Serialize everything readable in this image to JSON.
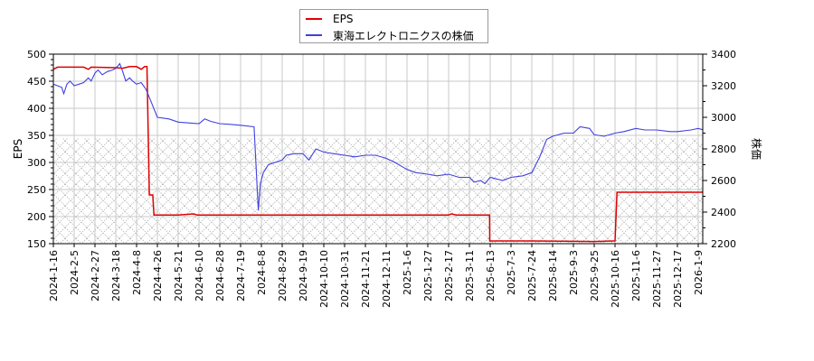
{
  "chart_data": {
    "type": "line",
    "title": "",
    "legend": {
      "position": "top-center",
      "entries": [
        {
          "label": "EPS",
          "color": "#e00000"
        },
        {
          "label": "東海エレクトロニクスの株価",
          "color": "#4040e0"
        }
      ]
    },
    "left_axis": {
      "label": "EPS",
      "ylim": [
        150,
        500
      ],
      "ticks": [
        150,
        200,
        250,
        300,
        350,
        400,
        450,
        500
      ]
    },
    "right_axis": {
      "label": "株価",
      "ylim": [
        2200,
        3400
      ],
      "ticks": [
        2200,
        2400,
        2600,
        2800,
        3000,
        3200,
        3400
      ]
    },
    "x_ticks": [
      "2024-1-16",
      "2024-2-5",
      "2024-2-27",
      "2024-3-18",
      "2024-4-8",
      "2024-4-26",
      "2024-5-21",
      "2024-6-10",
      "2024-6-28",
      "2024-7-19",
      "2024-8-8",
      "2024-8-29",
      "2024-9-19",
      "2024-10-10",
      "2024-10-31",
      "2024-11-21",
      "2024-12-11",
      "2025-1-6",
      "2025-1-27",
      "2025-2-17",
      "2025-3-11",
      "2025-6-13",
      "2025-7-3",
      "2025-7-24",
      "2025-8-14",
      "2025-9-3",
      "2025-9-25",
      "2025-10-16",
      "2025-11-6",
      "2025-11-27",
      "2025-12-17",
      "2026-1-9"
    ],
    "grid": true,
    "shaded_region": {
      "description": "cross-hatched band below EPS ≈ 345",
      "y_top_eps": 345,
      "y_bottom_eps": 150
    },
    "series": [
      {
        "name": "EPS",
        "axis": "left",
        "color": "#e00000",
        "points": [
          [
            "2024-1-16",
            472
          ],
          [
            "2024-1-20",
            476
          ],
          [
            "2024-2-5",
            476
          ],
          [
            "2024-2-15",
            476
          ],
          [
            "2024-2-20",
            472
          ],
          [
            "2024-2-23",
            476
          ],
          [
            "2024-3-18",
            475
          ],
          [
            "2024-3-25",
            474
          ],
          [
            "2024-4-1",
            477
          ],
          [
            "2024-4-8",
            477
          ],
          [
            "2024-4-12",
            472
          ],
          [
            "2024-4-15",
            477
          ],
          [
            "2024-4-17",
            477
          ],
          [
            "2024-4-18",
            360
          ],
          [
            "2024-4-19",
            240
          ],
          [
            "2024-4-22",
            240
          ],
          [
            "2024-4-23",
            203
          ],
          [
            "2024-5-21",
            203
          ],
          [
            "2024-6-5",
            205
          ],
          [
            "2024-6-8",
            203
          ],
          [
            "2024-8-8",
            203
          ],
          [
            "2025-1-27",
            203
          ],
          [
            "2025-2-17",
            203
          ],
          [
            "2025-2-20",
            205
          ],
          [
            "2025-2-25",
            203
          ],
          [
            "2025-3-11",
            203
          ],
          [
            "2025-6-10",
            203
          ],
          [
            "2025-6-11",
            155
          ],
          [
            "2025-7-24",
            155
          ],
          [
            "2025-9-25",
            154
          ],
          [
            "2025-10-14",
            155
          ],
          [
            "2025-10-16",
            155
          ],
          [
            "2025-10-18",
            245
          ],
          [
            "2025-11-27",
            245
          ],
          [
            "2026-1-15",
            245
          ]
        ]
      },
      {
        "name": "東海エレクトロニクスの株価",
        "axis": "right",
        "color": "#4040e0",
        "points": [
          [
            "2024-1-16",
            3210
          ],
          [
            "2024-1-20",
            3200
          ],
          [
            "2024-1-24",
            3190
          ],
          [
            "2024-1-26",
            3150
          ],
          [
            "2024-1-29",
            3210
          ],
          [
            "2024-2-1",
            3230
          ],
          [
            "2024-2-5",
            3200
          ],
          [
            "2024-2-10",
            3210
          ],
          [
            "2024-2-15",
            3220
          ],
          [
            "2024-2-20",
            3250
          ],
          [
            "2024-2-23",
            3230
          ],
          [
            "2024-2-27",
            3280
          ],
          [
            "2024-3-1",
            3300
          ],
          [
            "2024-3-5",
            3270
          ],
          [
            "2024-3-10",
            3290
          ],
          [
            "2024-3-15",
            3300
          ],
          [
            "2024-3-18",
            3310
          ],
          [
            "2024-3-22",
            3340
          ],
          [
            "2024-3-25",
            3290
          ],
          [
            "2024-3-28",
            3230
          ],
          [
            "2024-4-1",
            3250
          ],
          [
            "2024-4-4",
            3230
          ],
          [
            "2024-4-8",
            3210
          ],
          [
            "2024-4-12",
            3220
          ],
          [
            "2024-4-16",
            3180
          ],
          [
            "2024-4-20",
            3110
          ],
          [
            "2024-4-26",
            3000
          ],
          [
            "2024-5-10",
            2990
          ],
          [
            "2024-5-21",
            2970
          ],
          [
            "2024-6-10",
            2960
          ],
          [
            "2024-6-15",
            2990
          ],
          [
            "2024-6-20",
            2975
          ],
          [
            "2024-6-28",
            2960
          ],
          [
            "2024-7-10",
            2955
          ],
          [
            "2024-7-19",
            2950
          ],
          [
            "2024-8-1",
            2940
          ],
          [
            "2024-8-5",
            2410
          ],
          [
            "2024-8-7",
            2580
          ],
          [
            "2024-8-10",
            2650
          ],
          [
            "2024-8-15",
            2700
          ],
          [
            "2024-8-29",
            2730
          ],
          [
            "2024-9-2",
            2760
          ],
          [
            "2024-9-10",
            2770
          ],
          [
            "2024-9-19",
            2770
          ],
          [
            "2024-9-25",
            2730
          ],
          [
            "2024-10-2",
            2800
          ],
          [
            "2024-10-10",
            2780
          ],
          [
            "2024-10-20",
            2770
          ],
          [
            "2024-10-31",
            2760
          ],
          [
            "2024-11-10",
            2750
          ],
          [
            "2024-11-21",
            2760
          ],
          [
            "2024-12-1",
            2760
          ],
          [
            "2024-12-11",
            2740
          ],
          [
            "2024-12-20",
            2720
          ],
          [
            "2025-1-6",
            2670
          ],
          [
            "2025-1-15",
            2650
          ],
          [
            "2025-1-27",
            2640
          ],
          [
            "2025-2-5",
            2630
          ],
          [
            "2025-2-17",
            2640
          ],
          [
            "2025-2-28",
            2620
          ],
          [
            "2025-3-11",
            2620
          ],
          [
            "2025-4-1",
            2590
          ],
          [
            "2025-5-1",
            2600
          ],
          [
            "2025-5-20",
            2580
          ],
          [
            "2025-6-13",
            2620
          ],
          [
            "2025-6-25",
            2600
          ],
          [
            "2025-7-3",
            2620
          ],
          [
            "2025-7-15",
            2630
          ],
          [
            "2025-7-24",
            2650
          ],
          [
            "2025-8-1",
            2750
          ],
          [
            "2025-8-8",
            2860
          ],
          [
            "2025-8-14",
            2880
          ],
          [
            "2025-8-25",
            2900
          ],
          [
            "2025-9-3",
            2900
          ],
          [
            "2025-9-10",
            2940
          ],
          [
            "2025-9-20",
            2930
          ],
          [
            "2025-9-25",
            2890
          ],
          [
            "2025-10-5",
            2880
          ],
          [
            "2025-10-16",
            2900
          ],
          [
            "2025-10-25",
            2910
          ],
          [
            "2025-11-6",
            2930
          ],
          [
            "2025-11-15",
            2920
          ],
          [
            "2025-11-27",
            2920
          ],
          [
            "2025-12-10",
            2910
          ],
          [
            "2025-12-17",
            2910
          ],
          [
            "2026-1-1",
            2920
          ],
          [
            "2026-1-9",
            2930
          ],
          [
            "2026-1-15",
            2920
          ]
        ]
      }
    ]
  },
  "legend": {
    "eps_label": "EPS",
    "price_label": "東海エレクトロニクスの株価"
  },
  "axes": {
    "left_label": "EPS",
    "right_label": "株価"
  }
}
